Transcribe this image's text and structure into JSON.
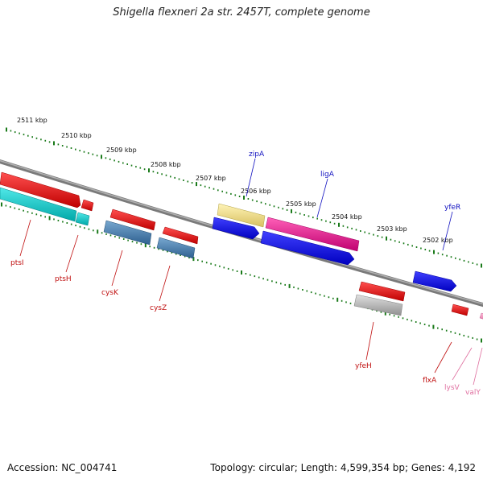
{
  "title": "Shigella flexneri 2a str. 2457T, complete genome",
  "footer": {
    "accession": "Accession: NC_004741",
    "summary": "Topology: circular; Length: 4,599,354 bp; Genes: 4,192"
  },
  "scale_labels": [
    "2511 kbp",
    "2510 kbp",
    "2509 kbp",
    "2508 kbp",
    "2507 kbp",
    "2506 kbp",
    "2505 kbp",
    "2504 kbp",
    "2503 kbp",
    "2502 kbp"
  ],
  "genes_top": [
    "zipA",
    "ligA",
    "yfeR"
  ],
  "genes_bottom": [
    "ptsI",
    "ptsH",
    "cysK",
    "cysZ",
    "yfeH",
    "flxA",
    "lysV",
    "valY"
  ],
  "colors": {
    "red": "#e81010",
    "blue": "#1010e8",
    "cyan": "#10c8c8",
    "steel": "#4a7fb0",
    "yellow": "#f0e08a",
    "magenta": "#e81890",
    "gray": "#b8b8b8",
    "pink": "#f090c0",
    "tick_green": "#1a7a1a",
    "backbone": "#888888",
    "top_label": "#1010c0",
    "bottom_label": "#c01010",
    "rna_label": "#e070a0"
  }
}
